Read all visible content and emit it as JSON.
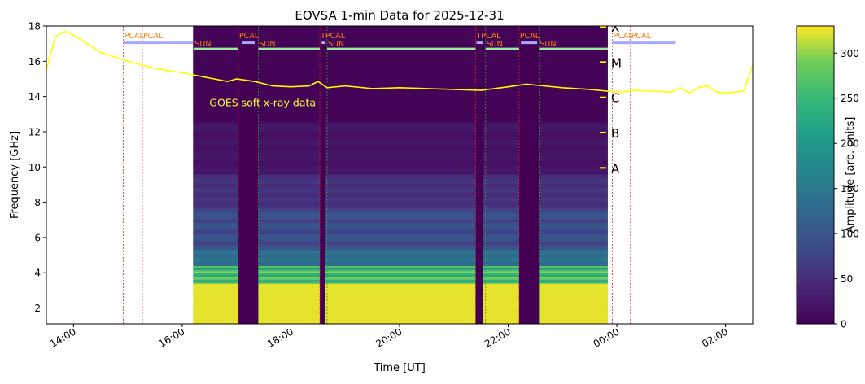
{
  "chart_data": {
    "type": "heatmap",
    "title": "EOVSA 1-min Data for 2025-12-31",
    "xlabel": "Time [UT]",
    "ylabel": "Frequency [GHz]",
    "xlim": [
      "13:30",
      "02:30"
    ],
    "ylim": [
      1.1,
      18
    ],
    "x_ticks": [
      "14:00",
      "16:00",
      "18:00",
      "20:00",
      "22:00",
      "00:00",
      "02:00"
    ],
    "y_ticks": [
      2,
      4,
      6,
      8,
      10,
      12,
      14,
      16,
      18
    ],
    "colorbar": {
      "label": "Amplitude [arb. units]",
      "range": [
        0,
        330
      ],
      "ticks": [
        0,
        50,
        100,
        150,
        200,
        250,
        300
      ],
      "colormap": "viridis"
    },
    "observation_window": [
      "16:12",
      "23:50"
    ],
    "gaps": [
      {
        "start": "17:02",
        "end": "17:24"
      },
      {
        "start": "18:32",
        "end": "18:38"
      },
      {
        "start": "21:24",
        "end": "21:32"
      },
      {
        "start": "22:12",
        "end": "22:34"
      }
    ],
    "scan_labels": [
      {
        "text": "PCAL",
        "time": "14:55"
      },
      {
        "text": "PCAL",
        "time": "15:16"
      },
      {
        "text": "SUN",
        "time": "16:13"
      },
      {
        "text": "PCAL",
        "time": "17:02"
      },
      {
        "text": "SUN",
        "time": "17:24"
      },
      {
        "text": "TPCAL",
        "time": "18:32"
      },
      {
        "text": "SUN",
        "time": "18:40"
      },
      {
        "text": "TPCAL",
        "time": "21:24"
      },
      {
        "text": "SUN",
        "time": "21:35"
      },
      {
        "text": "PCAL",
        "time": "22:12"
      },
      {
        "text": "SUN",
        "time": "22:34"
      },
      {
        "text": "PCAL",
        "time": "23:55"
      },
      {
        "text": "PCAL",
        "time": "00:15"
      }
    ],
    "goes_label": "GOES soft x-ray data",
    "goes_classes": [
      {
        "letter": "X",
        "freq": 17.95
      },
      {
        "letter": "M",
        "freq": 15.95
      },
      {
        "letter": "C",
        "freq": 13.95
      },
      {
        "letter": "B",
        "freq": 11.95
      },
      {
        "letter": "A",
        "freq": 9.95
      }
    ],
    "goes_curve": {
      "x": [
        "13:30",
        "13:40",
        "13:50",
        "14:00",
        "14:15",
        "14:30",
        "15:00",
        "15:30",
        "16:00",
        "16:30",
        "16:50",
        "17:00",
        "17:20",
        "17:40",
        "18:00",
        "18:20",
        "18:30",
        "18:40",
        "19:00",
        "19:30",
        "20:00",
        "20:30",
        "21:00",
        "21:30",
        "22:00",
        "22:20",
        "22:40",
        "23:00",
        "23:30",
        "23:50",
        "00:05",
        "00:20",
        "00:40",
        "01:00",
        "01:10",
        "01:20",
        "01:30",
        "01:40",
        "01:50",
        "02:00",
        "02:10",
        "02:20",
        "02:30"
      ],
      "y": [
        15.5,
        17.4,
        17.7,
        17.5,
        17.0,
        16.5,
        16.0,
        15.6,
        15.35,
        15.05,
        14.85,
        15.0,
        14.85,
        14.6,
        14.55,
        14.6,
        14.85,
        14.5,
        14.6,
        14.45,
        14.5,
        14.45,
        14.4,
        14.35,
        14.55,
        14.7,
        14.6,
        14.5,
        14.4,
        14.3,
        14.25,
        14.35,
        14.3,
        14.25,
        14.5,
        14.2,
        14.5,
        14.6,
        14.25,
        14.2,
        14.25,
        14.3,
        15.8
      ]
    }
  }
}
